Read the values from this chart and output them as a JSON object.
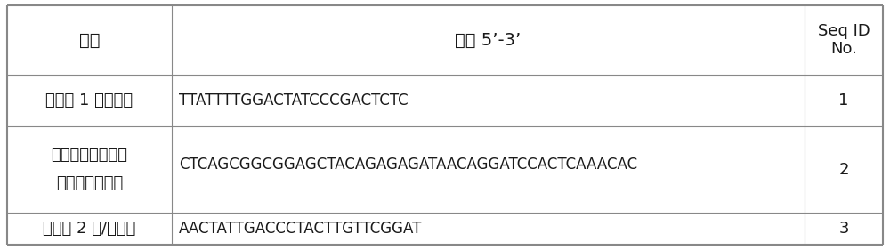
{
  "bg_color": "#ffffff",
  "header": {
    "col1": "名称",
    "col2": "序列 5’-3’",
    "col3_line1": "Seq ID",
    "col3_line2": "No."
  },
  "rows": [
    {
      "col1": "引物对 1 上游引物",
      "col2": "TTATTTTGGACTATCCCGACTCTC",
      "col3": "1"
    },
    {
      "col1_line1": "结合位点及加调控",
      "col1_line2": "序列的下游引物",
      "col2": "CTCAGCGGCGGAGCTACAGAGAGATAACAGGATCCACTCAAACAC",
      "col3": "2"
    },
    {
      "col1": "引物对 2 上/下游引",
      "col2": "AACTATTGACCCTACTTGTTCGGAT",
      "col3": "3"
    }
  ],
  "line_color": "#888888",
  "text_color": "#1a1a1a",
  "font_size_cn_header": 14,
  "font_size_cn_body": 13,
  "font_size_seq": 12,
  "font_size_seqid": 13
}
